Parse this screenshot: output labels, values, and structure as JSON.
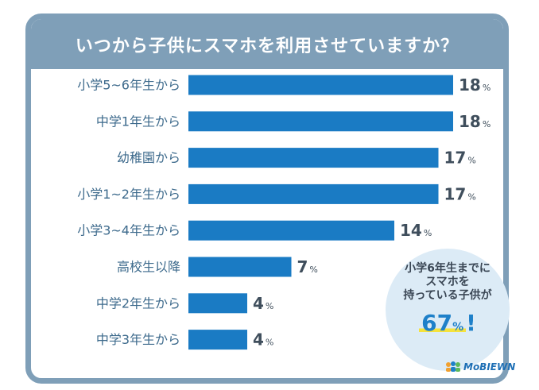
{
  "title": "いつから子供にスマホを利用させていますか？",
  "chart_data": {
    "type": "bar",
    "orientation": "horizontal",
    "title": "いつから子供にスマホを利用させていますか？",
    "categories": [
      "小学5~6年生から",
      "中学1年生から",
      "幼稚園から",
      "小学1~2年生から",
      "小学3~4年生から",
      "高校生以降",
      "中学2年生から",
      "中学3年生から"
    ],
    "values": [
      18,
      18,
      17,
      17,
      14,
      7,
      4,
      4
    ],
    "unit": "%",
    "xlim": [
      0,
      18
    ],
    "grid": false,
    "bar_color": "#1a7bc4"
  },
  "callout": {
    "line1": "小学6年生までに",
    "line2": "スマホを",
    "line3": "持っている子供が",
    "value": "67",
    "unit": "%",
    "suffix": "!"
  },
  "logo": {
    "text": "MoBIEWN",
    "icon": "people-logo-icon"
  },
  "colors": {
    "frame": "#7f9fb8",
    "bar": "#1a7bc4",
    "label": "#3d6a8c",
    "callout_bg": "#dcebf6",
    "highlight": "#f5e23c"
  }
}
